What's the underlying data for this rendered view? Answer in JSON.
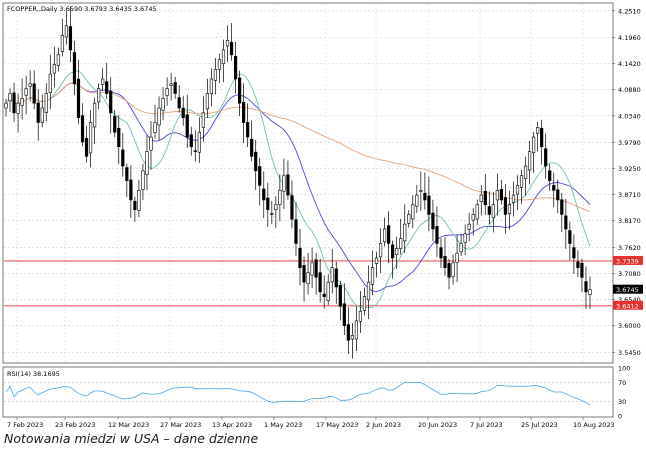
{
  "caption": "Notowania miedzi w USA – dane dzienne",
  "chart_data": [
    {
      "type": "candlestick",
      "title": "FCOPPER,,Daily  3.6590 3.6793 3.6435 3.6745",
      "ylim": [
        3.525,
        4.265
      ],
      "y_ticks": [
        "4.2510",
        "4.1960",
        "4.1420",
        "4.0880",
        "4.0340",
        "3.9790",
        "3.9250",
        "3.8710",
        "3.8170",
        "3.7620",
        "3.7080",
        "3.6540",
        "3.6000",
        "3.5450"
      ],
      "x_ticks": [
        "7 Feb 2023",
        "23 Feb 2023",
        "12 Mar 2023",
        "27 Mar 2023",
        "13 Apr 2023",
        "1 May 2023",
        "17 May 2023",
        "2 Jun 2023",
        "20 Jun 2023",
        "7 Jul 2023",
        "25 Jul 2023",
        "10 Aug 2023"
      ],
      "price_labels": [
        {
          "value": 3.7339,
          "text": "3.7339",
          "color": "#e53030"
        },
        {
          "value": 3.6745,
          "text": "3.6745",
          "color": "#000000"
        },
        {
          "value": 3.6412,
          "text": "3.6412",
          "color": "#e53030"
        }
      ],
      "hlines": [
        {
          "value": 3.7339,
          "color": "#e53030"
        },
        {
          "value": 3.6412,
          "color": "#e53030"
        }
      ],
      "closes": [
        4.06,
        4.08,
        4.04,
        4.06,
        4.07,
        4.09,
        4.1,
        4.06,
        4.02,
        4.05,
        4.08,
        4.12,
        4.14,
        4.16,
        4.2,
        4.22,
        4.17,
        4.1,
        4.03,
        3.98,
        3.95,
        4.02,
        4.06,
        4.09,
        4.11,
        4.08,
        4.04,
        4.0,
        3.97,
        3.93,
        3.9,
        3.86,
        3.84,
        3.88,
        3.92,
        3.96,
        3.99,
        4.02,
        4.05,
        4.07,
        4.09,
        4.1,
        4.08,
        4.05,
        4.03,
        3.99,
        3.97,
        3.96,
        4.0,
        4.04,
        4.08,
        4.11,
        4.13,
        4.15,
        4.17,
        4.19,
        4.16,
        4.11,
        4.06,
        4.02,
        3.99,
        3.95,
        3.92,
        3.89,
        3.86,
        3.84,
        3.83,
        3.85,
        3.88,
        3.91,
        3.87,
        3.82,
        3.77,
        3.72,
        3.69,
        3.71,
        3.73,
        3.7,
        3.67,
        3.66,
        3.69,
        3.72,
        3.68,
        3.64,
        3.6,
        3.57,
        3.58,
        3.61,
        3.63,
        3.66,
        3.69,
        3.72,
        3.74,
        3.77,
        3.8,
        3.77,
        3.74,
        3.76,
        3.78,
        3.81,
        3.83,
        3.85,
        3.87,
        3.88,
        3.86,
        3.83,
        3.8,
        3.77,
        3.74,
        3.72,
        3.7,
        3.73,
        3.75,
        3.77,
        3.79,
        3.81,
        3.83,
        3.85,
        3.87,
        3.85,
        3.83,
        3.85,
        3.88,
        3.86,
        3.83,
        3.85,
        3.87,
        3.89,
        3.91,
        3.93,
        3.96,
        3.99,
        4.01,
        3.97,
        3.93,
        3.9,
        3.88,
        3.86,
        3.83,
        3.8,
        3.77,
        3.74,
        3.72,
        3.7,
        3.67,
        3.6745
      ],
      "moving_averages": [
        {
          "color": "#4a4ad8",
          "period": 20
        },
        {
          "color": "#6cc4a8",
          "period": 10
        },
        {
          "color": "#e3a57a",
          "period": 100
        }
      ]
    },
    {
      "type": "line",
      "title": "RSI(14) 38.1695",
      "ylim": [
        0,
        100
      ],
      "y_ticks": [
        "100",
        "70",
        "30",
        "0"
      ],
      "levels": [
        70,
        30
      ],
      "line_color": "#4aa8e8"
    }
  ]
}
